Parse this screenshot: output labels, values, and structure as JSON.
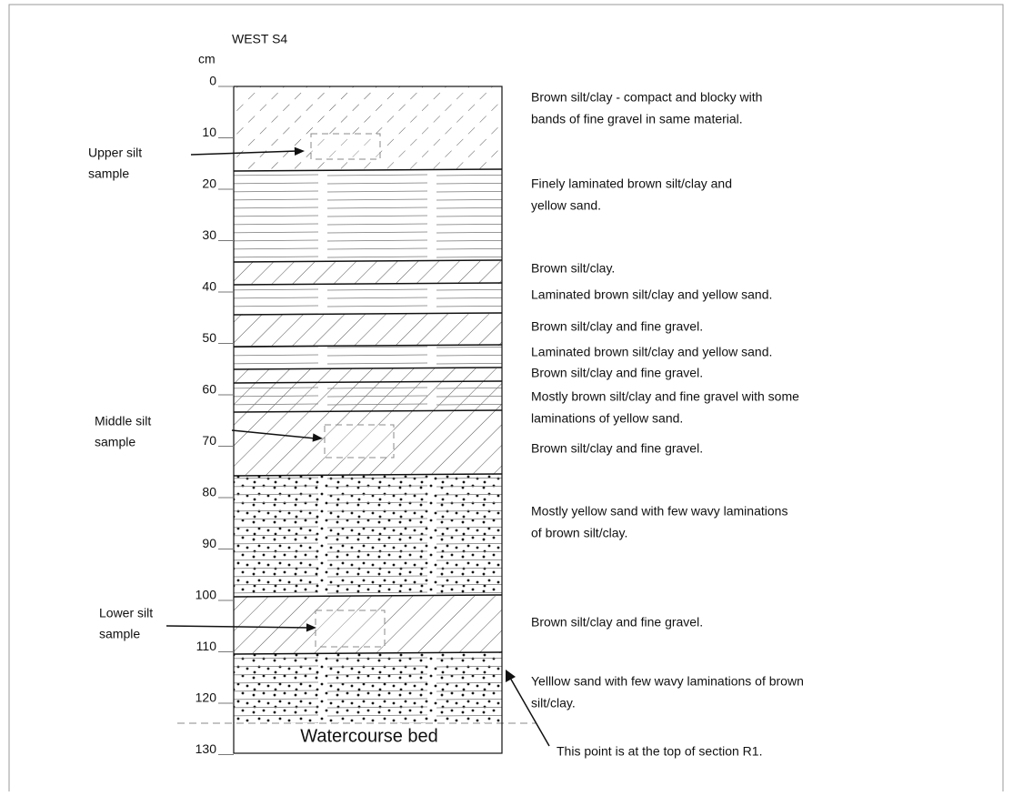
{
  "title": "WEST S4",
  "unit": "cm",
  "depth_labels": [
    0,
    10,
    20,
    30,
    40,
    50,
    60,
    70,
    80,
    90,
    100,
    110,
    120,
    130
  ],
  "layers": [
    {
      "lines": [
        "Brown silt/clay - compact and blocky with",
        "bands of fine gravel in same material."
      ]
    },
    {
      "lines": [
        "Finely laminated brown silt/clay and",
        "yellow sand."
      ]
    },
    {
      "lines": [
        "Brown silt/clay."
      ]
    },
    {
      "lines": [
        "Laminated brown silt/clay and yellow sand."
      ]
    },
    {
      "lines": [
        "Brown silt/clay and fine gravel."
      ]
    },
    {
      "lines": [
        "Laminated brown silt/clay and yellow sand."
      ]
    },
    {
      "lines": [
        "Brown silt/clay and fine gravel."
      ]
    },
    {
      "lines": [
        "Mostly brown silt/clay and fine gravel with some",
        "laminations of yellow sand."
      ]
    },
    {
      "lines": [
        "Brown silt/clay and fine gravel."
      ]
    },
    {
      "lines": [
        "Mostly yellow sand with few wavy laminations",
        "of brown silt/clay."
      ]
    },
    {
      "lines": [
        "Brown silt/clay and fine gravel."
      ]
    },
    {
      "lines": [
        "Yelllow sand with few wavy laminations of brown",
        "silt/clay."
      ]
    }
  ],
  "samples": [
    {
      "lines": [
        "Upper silt",
        "sample"
      ]
    },
    {
      "lines": [
        "Middle silt",
        "sample"
      ]
    },
    {
      "lines": [
        "Lower silt",
        "sample"
      ]
    }
  ],
  "bed_label": "Watercourse bed",
  "note": "This point is at the top of section R1."
}
